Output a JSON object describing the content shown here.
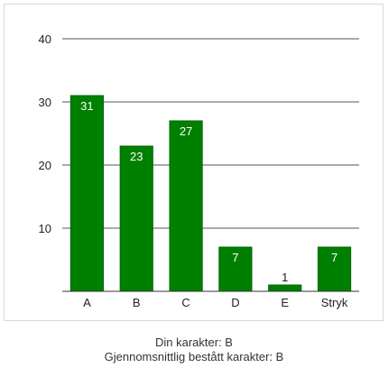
{
  "chart_data": {
    "type": "bar",
    "categories": [
      "A",
      "B",
      "C",
      "D",
      "E",
      "Stryk"
    ],
    "values": [
      31,
      23,
      27,
      7,
      1,
      7
    ],
    "ylim": [
      0,
      40
    ],
    "yticks": [
      10,
      20,
      30,
      40
    ],
    "grid": true,
    "bar_color": "#008000",
    "bar_border_color": "#006400",
    "grid_color": "#555555",
    "data_labels": true
  },
  "captions": {
    "grade": "Din karakter: B",
    "average": "Gjennomsnittlig bestått karakter: B"
  }
}
